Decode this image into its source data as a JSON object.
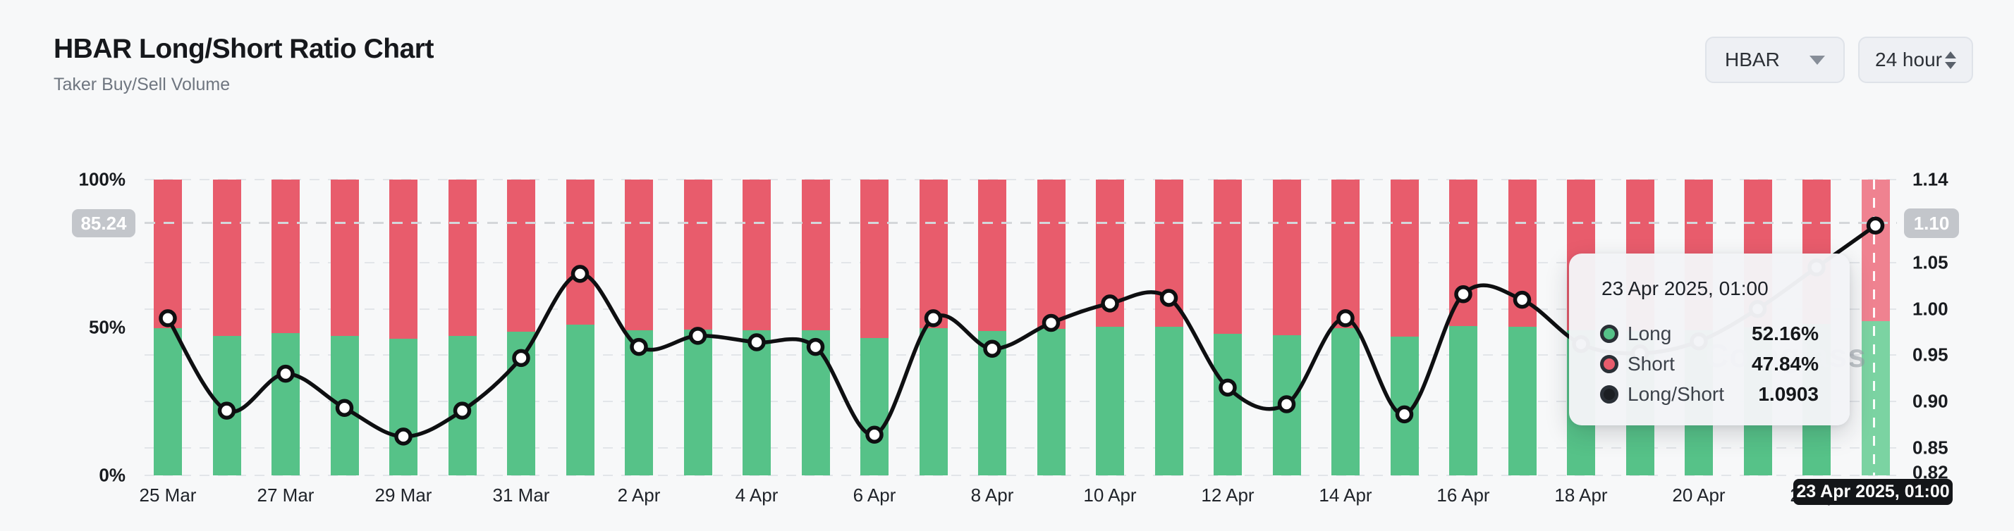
{
  "header": {
    "title": "HBAR Long/Short Ratio Chart",
    "subtitle": "Taker Buy/Sell Volume"
  },
  "controls": {
    "symbol": "HBAR",
    "interval": "24 hour"
  },
  "axis_badges": {
    "left": "85.24",
    "right": "1.10",
    "bottom_date": "23 Apr 2025, 01:00"
  },
  "watermark": "Coinglass",
  "tooltip": {
    "title": "23 Apr 2025, 01:00",
    "rows": [
      {
        "label": "Long",
        "value": "52.16%",
        "color": "#56c288"
      },
      {
        "label": "Short",
        "value": "47.84%",
        "color": "#e85c6c"
      },
      {
        "label": "Long/Short",
        "value": "1.0903",
        "color": "#1b1e22"
      }
    ]
  },
  "chart_data": {
    "type": "bar",
    "subtype": "stacked-percent-bars-with-ratio-line",
    "title": "HBAR Long/Short Ratio",
    "categories": [
      "25 Mar",
      "26 Mar",
      "27 Mar",
      "28 Mar",
      "29 Mar",
      "30 Mar",
      "31 Mar",
      "1 Apr",
      "2 Apr",
      "3 Apr",
      "4 Apr",
      "5 Apr",
      "6 Apr",
      "7 Apr",
      "8 Apr",
      "9 Apr",
      "10 Apr",
      "11 Apr",
      "12 Apr",
      "13 Apr",
      "14 Apr",
      "15 Apr",
      "16 Apr",
      "17 Apr",
      "18 Apr",
      "19 Apr",
      "20 Apr",
      "21 Apr",
      "22 Apr",
      "23 Apr"
    ],
    "x_tick_labels": [
      "25 Mar",
      "27 Mar",
      "29 Mar",
      "31 Mar",
      "2 Apr",
      "4 Apr",
      "6 Apr",
      "8 Apr",
      "10 Apr",
      "12 Apr",
      "14 Apr",
      "16 Apr",
      "18 Apr",
      "20 Apr",
      "22 Apr"
    ],
    "series": [
      {
        "name": "Long",
        "axis": "left",
        "unit": "%",
        "values": [
          49.75,
          47.09,
          48.19,
          47.17,
          46.29,
          47.09,
          48.64,
          50.93,
          48.95,
          49.26,
          49.08,
          48.95,
          46.35,
          49.75,
          48.9,
          49.62,
          50.15,
          50.3,
          47.78,
          47.28,
          49.75,
          46.98,
          50.4,
          50.25,
          49.03,
          48.77,
          49.11,
          50.0,
          51.1,
          52.16
        ]
      },
      {
        "name": "Short",
        "axis": "left",
        "unit": "%",
        "values": [
          50.25,
          52.91,
          51.81,
          52.83,
          53.71,
          52.91,
          51.36,
          49.07,
          51.05,
          50.74,
          50.92,
          51.05,
          53.65,
          50.25,
          51.1,
          50.38,
          49.85,
          49.7,
          52.22,
          52.72,
          50.25,
          53.02,
          49.6,
          49.75,
          50.97,
          51.23,
          50.89,
          50.0,
          48.9,
          47.84
        ]
      },
      {
        "name": "Long/Short",
        "axis": "right",
        "values": [
          0.99,
          0.89,
          0.93,
          0.893,
          0.862,
          0.89,
          0.947,
          1.038,
          0.959,
          0.971,
          0.964,
          0.959,
          0.864,
          0.99,
          0.957,
          0.985,
          1.006,
          1.012,
          0.915,
          0.897,
          0.99,
          0.886,
          1.016,
          1.01,
          0.962,
          0.952,
          0.965,
          1.0,
          1.045,
          1.0903
        ]
      }
    ],
    "left_axis": {
      "tick_labels": [
        "100%",
        "50%",
        "0%"
      ],
      "range": [
        0,
        100
      ]
    },
    "right_axis": {
      "tick_labels": [
        "1.14",
        "1.05",
        "1.00",
        "0.95",
        "0.90",
        "0.85",
        "0.82"
      ],
      "badge_tick": "1.10",
      "range": [
        0.82,
        1.14
      ]
    },
    "highlight_index": 29,
    "hover": {
      "crosshair_left_value": "85.24",
      "crosshair_right_value": "1.10",
      "crosshair_date": "23 Apr 2025, 01:00"
    },
    "colors": {
      "long": "#56c288",
      "short": "#e85c6c",
      "line": "#0e0f11",
      "grid": "#e2e5e9"
    },
    "legend_position": "tooltip-only",
    "grid": true
  }
}
